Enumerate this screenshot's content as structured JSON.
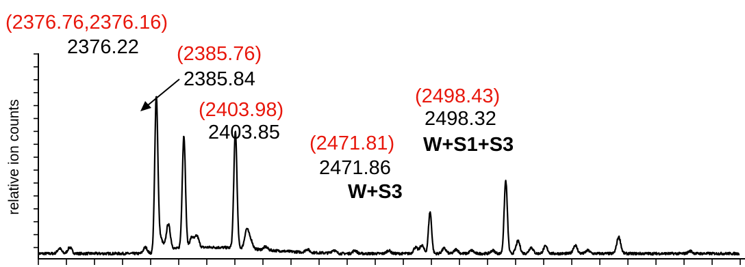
{
  "chart_data": {
    "type": "line",
    "title": "",
    "xlabel": "",
    "ylabel": "relative ion counts",
    "grid": false,
    "legend": "none",
    "colors": {
      "trace": "#000000",
      "theoretical": "#e8170c",
      "observed": "#000000"
    },
    "peaks": [
      {
        "id": "p1",
        "x": 2376.22,
        "y": 0.74,
        "theoretical": "(2376.76,2376.16)",
        "observed": "2376.22",
        "assignment": ""
      },
      {
        "id": "p2",
        "x": 2385.84,
        "y": 0.54,
        "theoretical": "(2385.76)",
        "observed": "2385.84",
        "assignment": ""
      },
      {
        "id": "p3",
        "x": 2403.85,
        "y": 0.56,
        "theoretical": "(2403.98)",
        "observed": "2403.85",
        "assignment": ""
      },
      {
        "id": "p4",
        "x": 2471.86,
        "y": 0.2,
        "theoretical": "(2471.81)",
        "observed": "2471.86",
        "assignment": "W+S3"
      },
      {
        "id": "p5",
        "x": 2498.32,
        "y": 0.35,
        "theoretical": "(2498.43)",
        "observed": "2498.32",
        "assignment": "W+S1+S3"
      }
    ],
    "minor_peaks": [
      {
        "x": 2342.4,
        "y": 0.025
      },
      {
        "x": 2346.0,
        "y": 0.03
      },
      {
        "x": 2372.4,
        "y": 0.03
      },
      {
        "x": 2380.4,
        "y": 0.12
      },
      {
        "x": 2377.8,
        "y": 0.05
      },
      {
        "x": 2388.6,
        "y": 0.05
      },
      {
        "x": 2390.4,
        "y": 0.055
      },
      {
        "x": 2407.8,
        "y": 0.09
      },
      {
        "x": 2409.2,
        "y": 0.04
      },
      {
        "x": 2414.4,
        "y": 0.015
      },
      {
        "x": 2429.0,
        "y": 0.015
      },
      {
        "x": 2438.2,
        "y": 0.015
      },
      {
        "x": 2445.6,
        "y": 0.015
      },
      {
        "x": 2457.4,
        "y": 0.015
      },
      {
        "x": 2466.8,
        "y": 0.03
      },
      {
        "x": 2469.0,
        "y": 0.04
      },
      {
        "x": 2476.8,
        "y": 0.025
      },
      {
        "x": 2481.0,
        "y": 0.02
      },
      {
        "x": 2486.4,
        "y": 0.015
      },
      {
        "x": 2493.8,
        "y": 0.015
      },
      {
        "x": 2502.6,
        "y": 0.06
      },
      {
        "x": 2507.2,
        "y": 0.03
      },
      {
        "x": 2512.2,
        "y": 0.035
      },
      {
        "x": 2522.6,
        "y": 0.04
      },
      {
        "x": 2527.0,
        "y": 0.015
      },
      {
        "x": 2537.8,
        "y": 0.08
      },
      {
        "x": 2562.8,
        "y": 0.012
      }
    ],
    "xlim": [
      2335,
      2580
    ],
    "ylim": [
      0,
      1.0
    ],
    "noise_baseline": 0.012
  }
}
